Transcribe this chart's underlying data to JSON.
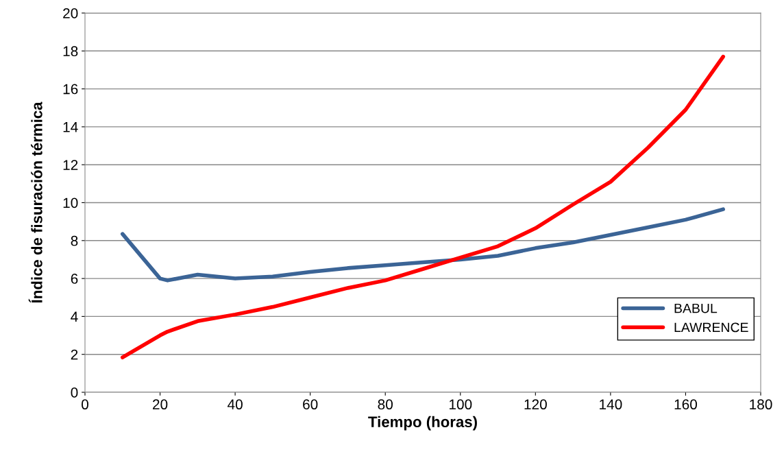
{
  "chart_data": {
    "type": "line",
    "xlabel": "Tiempo (horas)",
    "ylabel": "Índice de fisuración térmica",
    "x": [
      10,
      20,
      22,
      30,
      40,
      50,
      60,
      70,
      80,
      90,
      100,
      110,
      120,
      130,
      140,
      150,
      160,
      170
    ],
    "series": [
      {
        "name": "BABUL",
        "color": "#3b6496",
        "values": [
          8.35,
          6.0,
          5.9,
          6.2,
          6.0,
          6.1,
          6.35,
          6.55,
          6.7,
          6.85,
          7.0,
          7.2,
          7.6,
          7.9,
          8.3,
          8.7,
          9.1,
          9.65
        ]
      },
      {
        "name": "LAWRENCE",
        "color": "#ff0000",
        "values": [
          1.84,
          3.0,
          3.2,
          3.75,
          4.1,
          4.5,
          5.0,
          5.5,
          5.9,
          6.5,
          7.1,
          7.7,
          8.65,
          9.9,
          11.1,
          12.9,
          14.9,
          17.7
        ]
      }
    ],
    "xlim": [
      0,
      180
    ],
    "xticks": [
      0,
      20,
      40,
      60,
      80,
      100,
      120,
      140,
      160,
      180
    ],
    "ylim": [
      0,
      20
    ],
    "yticks": [
      0,
      2,
      4,
      6,
      8,
      10,
      12,
      14,
      16,
      18,
      20
    ],
    "grid": "y",
    "legend": "lower right",
    "marker": "none",
    "line_style": "solid"
  }
}
